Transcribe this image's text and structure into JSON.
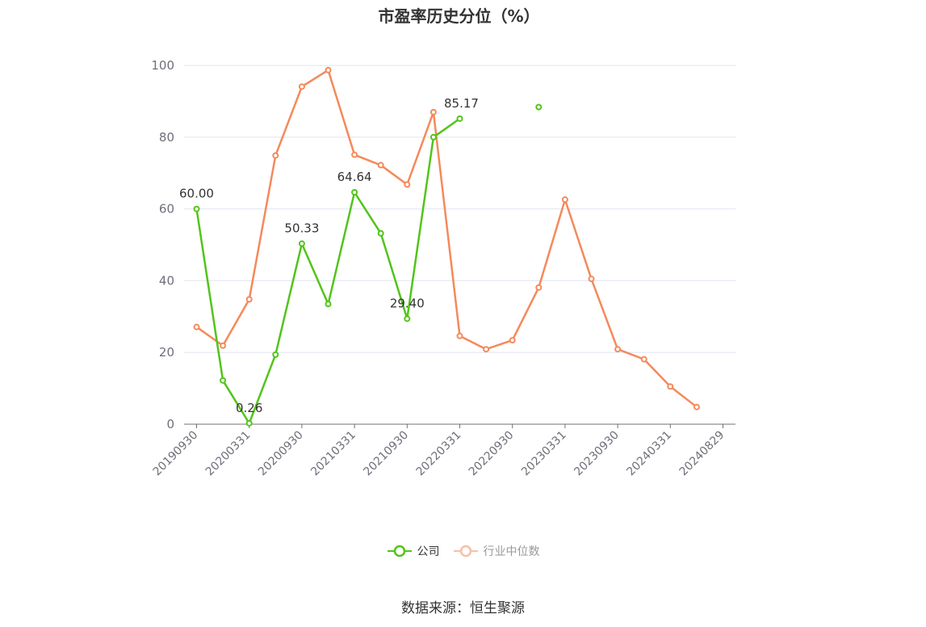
{
  "chart_data": {
    "type": "line",
    "title": "市盈率历史分位（%）",
    "x": [
      "20190930",
      "20191231",
      "20200331",
      "20200630",
      "20200930",
      "20201231",
      "20210331",
      "20210630",
      "20210930",
      "20211231",
      "20220331",
      "20220630",
      "20220930",
      "20221231",
      "20230331",
      "20230630",
      "20230930",
      "20231231",
      "20240331",
      "20240630",
      "20240829"
    ],
    "x_tick_labels": [
      "20190930",
      "20200331",
      "20200930",
      "20210331",
      "20210930",
      "20220331",
      "20220930",
      "20230331",
      "20230930",
      "20240331",
      "20240829"
    ],
    "ylim": [
      0,
      100
    ],
    "y_ticks": [
      0,
      20,
      40,
      60,
      80,
      100
    ],
    "grid": true,
    "legend_position": "bottom-center",
    "series": [
      {
        "name": "公司",
        "color": "#52c41a",
        "values": [
          60.0,
          12.2,
          0.26,
          19.4,
          50.33,
          33.5,
          64.64,
          53.2,
          29.4,
          80.0,
          85.17,
          null,
          null,
          88.4,
          null,
          null,
          null,
          null,
          null,
          null,
          null
        ],
        "labels": [
          "60.00",
          null,
          "0.26",
          null,
          "50.33",
          null,
          "64.64",
          null,
          "29.40",
          null,
          "85.17",
          null,
          null,
          null,
          null,
          null,
          null,
          null,
          null,
          null,
          null
        ]
      },
      {
        "name": "行业中位数",
        "color": "#f5895a",
        "values": [
          27.1,
          21.9,
          34.8,
          74.9,
          94.1,
          98.7,
          75.1,
          72.2,
          66.8,
          87.0,
          24.6,
          20.9,
          23.4,
          38.1,
          62.6,
          40.5,
          20.9,
          18.1,
          10.5,
          4.8,
          null
        ]
      }
    ]
  },
  "source": "数据来源：恒生聚源"
}
